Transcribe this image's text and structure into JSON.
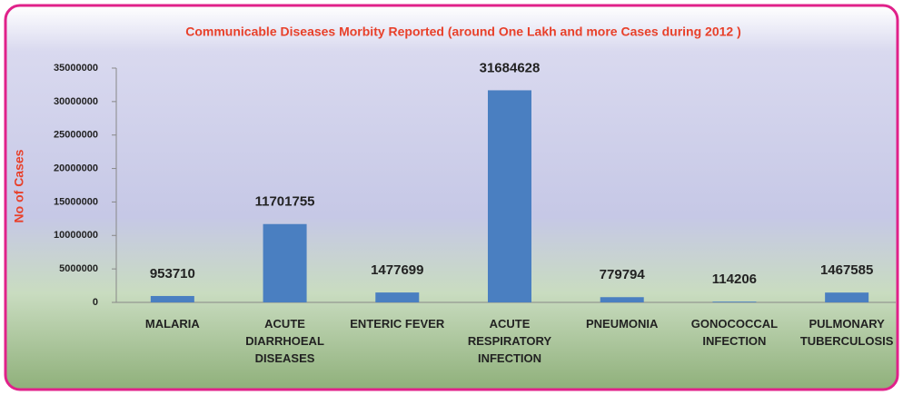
{
  "chart_data": {
    "type": "bar",
    "title": "Communicable Diseases Morbity Reported (around One Lakh and more  Cases during 2012 )",
    "y_label": "No of Cases",
    "categories": [
      "MALARIA",
      "ACUTE DIARRHOEAL DISEASES",
      "ENTERIC FEVER",
      "ACUTE RESPIRATORY INFECTION",
      "PNEUMONIA",
      "GONOCOCCAL INFECTION",
      "PULMONARY TUBERCULOSIS"
    ],
    "values": [
      953710,
      11701755,
      1477699,
      31684628,
      779794,
      114206,
      1467585
    ],
    "color": "#4a7fc1",
    "ylim": [
      0,
      35000000
    ],
    "yticks": [
      0,
      5000000,
      10000000,
      15000000,
      20000000,
      25000000,
      30000000,
      35000000
    ],
    "grid": false
  }
}
